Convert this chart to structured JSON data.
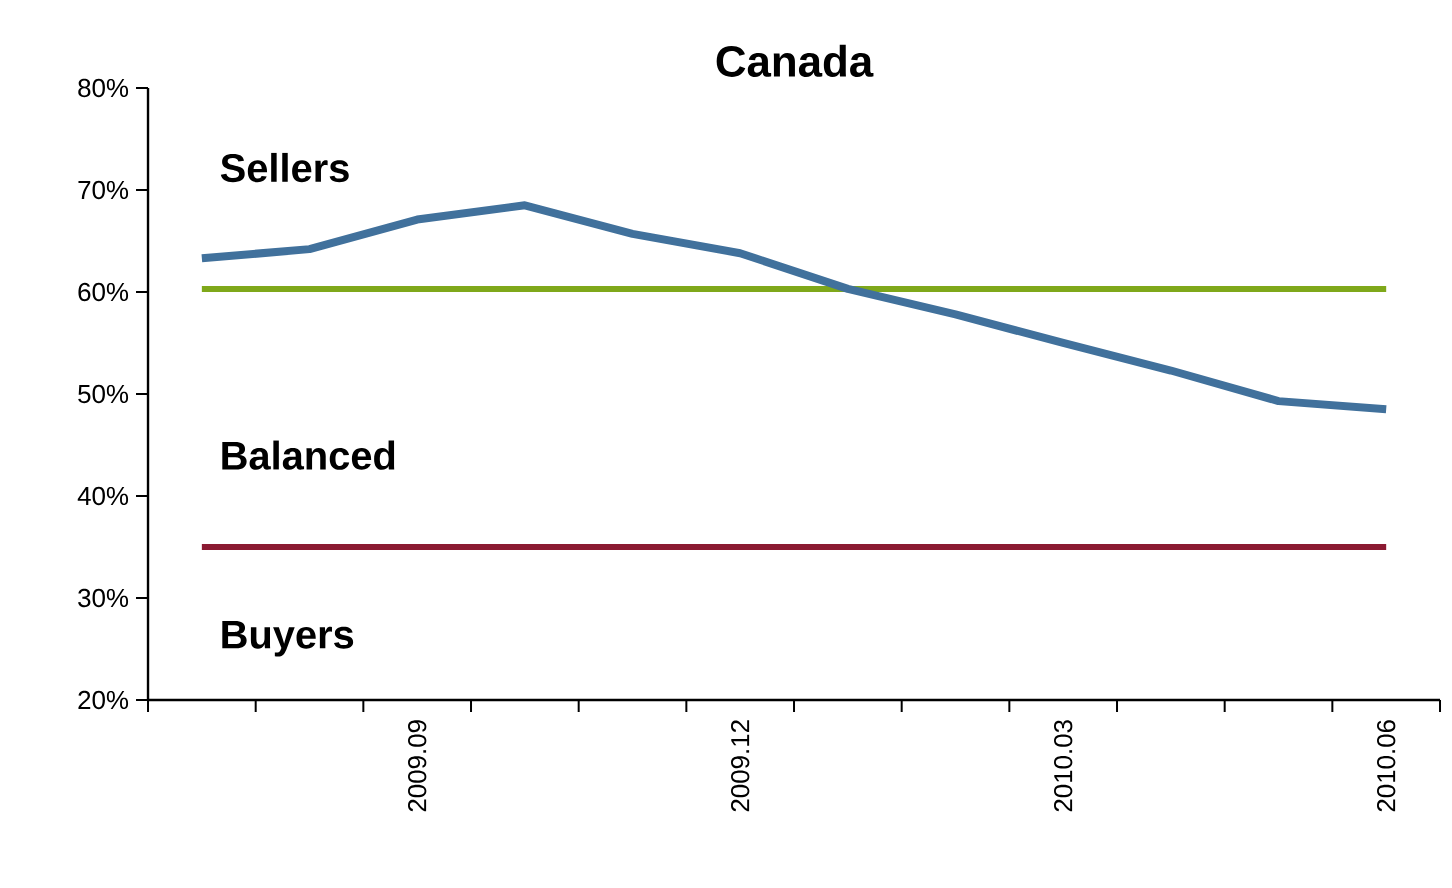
{
  "chart_data": {
    "type": "line",
    "title": "Canada",
    "categories": [
      null,
      null,
      "2009.09",
      null,
      null,
      "2009.12",
      null,
      null,
      "2010.03",
      null,
      null,
      "2010.06"
    ],
    "series": [
      {
        "color": "#41719c",
        "values": [
          63.3,
          64.2,
          67.1,
          68.5,
          65.7,
          63.8,
          60.3,
          57.8,
          55.0,
          52.3,
          49.3,
          48.5
        ]
      }
    ],
    "ylim": [
      20,
      80
    ],
    "yticks": [
      {
        "value": 20,
        "label": "20%"
      },
      {
        "value": 30,
        "label": "30%"
      },
      {
        "value": 40,
        "label": "40%"
      },
      {
        "value": 50,
        "label": "50%"
      },
      {
        "value": 60,
        "label": "60%"
      },
      {
        "value": 70,
        "label": "70%"
      },
      {
        "value": 80,
        "label": "80%"
      }
    ],
    "ref_lines": [
      {
        "axis": "y",
        "value": 60.3,
        "color": "#7fa81a"
      },
      {
        "axis": "y",
        "value": 35,
        "color": "#8b1a32"
      }
    ],
    "annotations": [
      "Sellers",
      "Balanced",
      "Buyers"
    ],
    "marker": "none",
    "line_style": "solid"
  }
}
